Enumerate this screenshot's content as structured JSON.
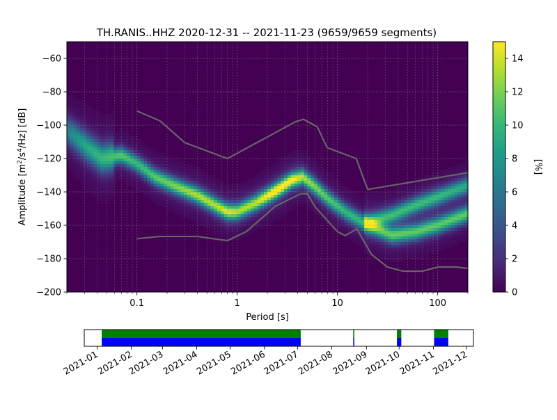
{
  "chart_data": {
    "type": "heatmap",
    "title": "TH.RANIS..HHZ   2020-12-31 -- 2021-11-23  (9659/9659 segments)",
    "xlabel": "Period [s]",
    "ylabel_parts": [
      "Amplitude [m",
      "2",
      "/s",
      "4",
      "/Hz] [dB]"
    ],
    "x_scale": "log",
    "xlim": [
      0.02,
      200
    ],
    "ylim": [
      -200,
      -50
    ],
    "x_ticks": [
      {
        "v": 0.1,
        "label": "0.1"
      },
      {
        "v": 1,
        "label": "1"
      },
      {
        "v": 10,
        "label": "10"
      },
      {
        "v": 100,
        "label": "100"
      }
    ],
    "y_ticks": [
      {
        "v": -60,
        "label": "−60"
      },
      {
        "v": -80,
        "label": "−80"
      },
      {
        "v": -100,
        "label": "−100"
      },
      {
        "v": -120,
        "label": "−120"
      },
      {
        "v": -140,
        "label": "−140"
      },
      {
        "v": -160,
        "label": "−160"
      },
      {
        "v": -180,
        "label": "−180"
      },
      {
        "v": -200,
        "label": "−200"
      }
    ],
    "grid": true,
    "colormap": "viridis",
    "background_color": "#440154",
    "colorbar": {
      "label": "[%]",
      "range": [
        0,
        15
      ],
      "ticks": [
        {
          "v": 0,
          "label": "0"
        },
        {
          "v": 2,
          "label": "2"
        },
        {
          "v": 4,
          "label": "4"
        },
        {
          "v": 6,
          "label": "6"
        },
        {
          "v": 8,
          "label": "8"
        },
        {
          "v": 10,
          "label": "10"
        },
        {
          "v": 12,
          "label": "12"
        },
        {
          "v": 14,
          "label": "14"
        }
      ]
    },
    "density_bands": [
      {
        "name": "main",
        "period": [
          0.02,
          0.03,
          0.045,
          0.07,
          0.1,
          0.15,
          0.25,
          0.4,
          0.6,
          0.8,
          1.0,
          1.5,
          2.5,
          3.5,
          4.5,
          6,
          8,
          12,
          20,
          35,
          60,
          100,
          200
        ],
        "amplitude": [
          -103,
          -112,
          -120,
          -118,
          -123,
          -131,
          -137,
          -142,
          -148,
          -152,
          -152,
          -147,
          -139,
          -133,
          -131,
          -137,
          -144,
          -152,
          -160,
          -166,
          -164,
          -160,
          -153
        ],
        "peak_percent": [
          6,
          8,
          9,
          10,
          9,
          10,
          11,
          12,
          12,
          13,
          12,
          12,
          15,
          14,
          12,
          11,
          10,
          9,
          9,
          10,
          10,
          10,
          10
        ]
      },
      {
        "name": "upper-branch",
        "period": [
          20,
          35,
          60,
          100,
          200
        ],
        "amplitude": [
          -158,
          -154,
          -148,
          -143,
          -136
        ],
        "peak_percent": [
          8,
          9,
          9,
          9,
          8
        ]
      }
    ],
    "series": [
      {
        "name": "NHNM",
        "color": "#666666",
        "x": [
          0.1,
          0.17,
          0.3,
          0.8,
          3.8,
          4.6,
          6.3,
          7.9,
          15.4,
          20,
          354
        ],
        "y": [
          -91.5,
          -97.4,
          -110.5,
          -120,
          -98,
          -96.5,
          -101,
          -113.5,
          -120,
          -138.5,
          -126
        ]
      },
      {
        "name": "NLNM",
        "color": "#666666",
        "x": [
          0.1,
          0.17,
          0.4,
          0.8,
          1.24,
          2.4,
          4.3,
          5,
          6,
          10,
          12,
          15.6,
          21.9,
          31.6,
          45,
          70,
          101,
          154,
          328
        ],
        "y": [
          -168,
          -166.7,
          -166.7,
          -169.2,
          -163.7,
          -148.6,
          -141.1,
          -141.1,
          -149,
          -163.8,
          -166.2,
          -162.1,
          -177.5,
          -185,
          -187.5,
          -187.5,
          -185,
          -185,
          -187.5
        ]
      }
    ]
  },
  "timeline": {
    "x_ticks": [
      {
        "label": "2021-01",
        "frac": 0.033
      },
      {
        "label": "2021-02",
        "frac": 0.121
      },
      {
        "label": "2021-03",
        "frac": 0.201
      },
      {
        "label": "2021-04",
        "frac": 0.289
      },
      {
        "label": "2021-05",
        "frac": 0.375
      },
      {
        "label": "2021-06",
        "frac": 0.463
      },
      {
        "label": "2021-07",
        "frac": 0.548
      },
      {
        "label": "2021-08",
        "frac": 0.636
      },
      {
        "label": "2021-09",
        "frac": 0.725
      },
      {
        "label": "2021-10",
        "frac": 0.809
      },
      {
        "label": "2021-11",
        "frac": 0.897
      },
      {
        "label": "2021-12",
        "frac": 0.982
      }
    ],
    "coverage_colors": {
      "processed": "#008000",
      "data": "#0000ff"
    },
    "segments": [
      {
        "start": "2020-12-31",
        "end": "2021-07-01"
      },
      {
        "start": "2021-08-18",
        "end": "2021-08-19"
      },
      {
        "start": "2021-09-27",
        "end": "2021-10-01"
      },
      {
        "start": "2021-10-31",
        "end": "2021-11-13"
      }
    ]
  }
}
